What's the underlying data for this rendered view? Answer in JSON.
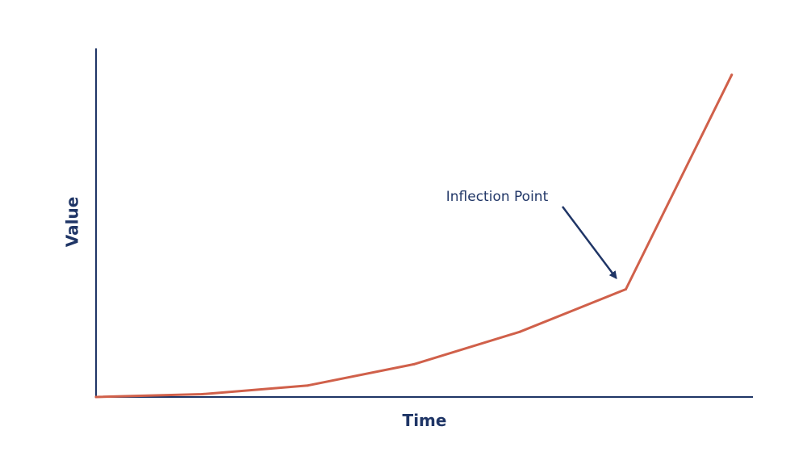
{
  "chart_data": {
    "type": "line",
    "title": "",
    "xlabel": "Time",
    "ylabel": "Value",
    "x": [
      0,
      1,
      2,
      3,
      4,
      5,
      6
    ],
    "series": [
      {
        "values": [
          0,
          0.8,
          3.3,
          9.4,
          18.7,
          30.9,
          92.4
        ]
      }
    ],
    "xlim": [
      0,
      6.2
    ],
    "ylim": [
      0,
      100
    ],
    "grid": false,
    "legend": "none",
    "annotations": [
      {
        "text": "Inflection Point",
        "target_x": 5,
        "target_y": 30.9
      }
    ],
    "colors": {
      "line": "#d0604a",
      "axis": "#1f3566",
      "text": "#1f3566"
    }
  }
}
